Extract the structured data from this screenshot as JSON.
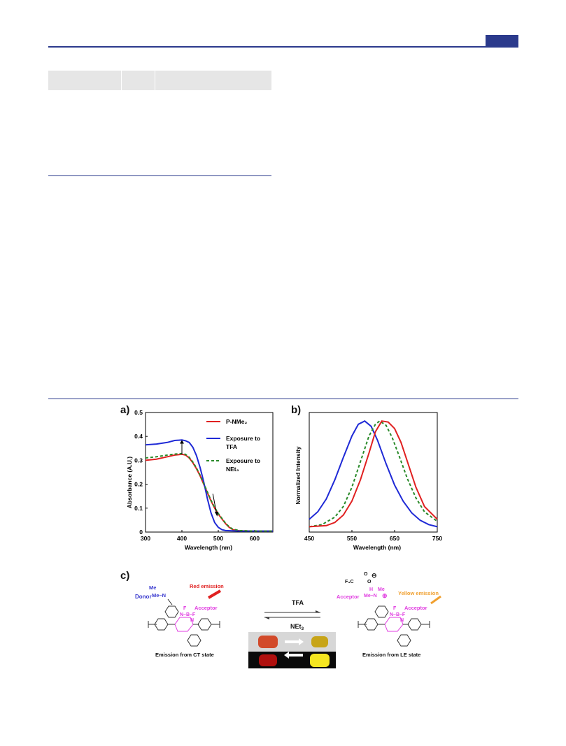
{
  "figure": {
    "panel_labels": {
      "a": "a)",
      "b": "b)",
      "c": "c)"
    }
  },
  "scheme": {
    "left": {
      "donor": "Donor",
      "me_top": "Me",
      "me_n": "Me–N",
      "red_emission": "Red emission",
      "acceptor": "Acceptor",
      "f": "F",
      "nbf": "N–B–F",
      "n": "N",
      "caption": "Emission from CT state"
    },
    "middle": {
      "forward": "TFA",
      "backward": "NEt",
      "backward_sub": "3"
    },
    "right": {
      "f3c": "F₃C",
      "o_top": "O",
      "o": "O",
      "minus": "⊖",
      "acceptor_left": "Acceptor",
      "me_n_h_me": "Me–N",
      "h": "H",
      "me": "Me",
      "plus": "⊕",
      "yellow_emission": "Yellow emission",
      "acceptor_right": "Acceptor",
      "f": "F",
      "nbf": "N–B–F",
      "n": "N",
      "caption": "Emission from LE state"
    },
    "colors": {
      "donor": "#3a3acf",
      "acceptor": "#e03ce0",
      "red": "#e02020",
      "yellow": "#f0a030"
    }
  },
  "chart_data": [
    {
      "type": "line",
      "panel": "a",
      "xlabel": "Wavelength (nm)",
      "ylabel": "Absorbance (A.U.)",
      "xlim": [
        300,
        650
      ],
      "ylim": [
        0,
        0.5
      ],
      "xticks": [
        "300",
        "400",
        "500",
        "600"
      ],
      "yticks": [
        "0",
        "0.1",
        "0.2",
        "0.3",
        "0.4",
        "0.5"
      ],
      "legend_position": "top-right",
      "series": [
        {
          "name": "P-NMe₂",
          "color": "#e02020",
          "dash": "solid",
          "x": [
            300,
            330,
            360,
            380,
            400,
            410,
            420,
            430,
            440,
            450,
            460,
            470,
            480,
            490,
            500,
            510,
            520,
            530,
            540,
            560,
            600,
            650
          ],
          "y": [
            0.3,
            0.305,
            0.315,
            0.322,
            0.325,
            0.322,
            0.31,
            0.29,
            0.265,
            0.235,
            0.2,
            0.165,
            0.13,
            0.1,
            0.075,
            0.055,
            0.035,
            0.02,
            0.01,
            0.005,
            0.004,
            0.004
          ]
        },
        {
          "name": "Exposure to TFA",
          "color": "#1f2ad6",
          "dash": "solid",
          "x": [
            300,
            330,
            360,
            380,
            400,
            410,
            420,
            430,
            440,
            450,
            460,
            470,
            480,
            490,
            500,
            510,
            520,
            540,
            560,
            600,
            650
          ],
          "y": [
            0.365,
            0.368,
            0.375,
            0.383,
            0.385,
            0.382,
            0.375,
            0.355,
            0.32,
            0.27,
            0.21,
            0.14,
            0.08,
            0.04,
            0.02,
            0.01,
            0.006,
            0.005,
            0.004,
            0.004,
            0.004
          ]
        },
        {
          "name": "Exposure to NEt₃",
          "color": "#2a8a2a",
          "dash": "dashed",
          "x": [
            300,
            330,
            360,
            380,
            400,
            410,
            420,
            430,
            440,
            450,
            460,
            470,
            480,
            490,
            500,
            510,
            520,
            530,
            540,
            560,
            600,
            650
          ],
          "y": [
            0.31,
            0.315,
            0.322,
            0.326,
            0.328,
            0.325,
            0.313,
            0.293,
            0.268,
            0.238,
            0.203,
            0.168,
            0.133,
            0.103,
            0.078,
            0.057,
            0.037,
            0.022,
            0.012,
            0.006,
            0.004,
            0.004
          ]
        }
      ]
    },
    {
      "type": "line",
      "panel": "b",
      "xlabel": "Wavelength (nm)",
      "ylabel": "Normalized Intensity",
      "xlim": [
        450,
        750
      ],
      "xticks": [
        "450",
        "550",
        "650",
        "750"
      ],
      "series": [
        {
          "color": "#1f2ad6",
          "dash": "solid",
          "x": [
            450,
            470,
            490,
            510,
            530,
            550,
            565,
            580,
            595,
            610,
            630,
            650,
            670,
            690,
            710,
            730,
            750
          ],
          "y": [
            0.08,
            0.15,
            0.27,
            0.45,
            0.66,
            0.86,
            0.97,
            1.0,
            0.95,
            0.82,
            0.6,
            0.4,
            0.25,
            0.14,
            0.07,
            0.03,
            0.01
          ]
        },
        {
          "color": "#2a8a2a",
          "dash": "dashed",
          "x": [
            450,
            480,
            510,
            530,
            550,
            570,
            590,
            605,
            615,
            630,
            645,
            660,
            680,
            700,
            720,
            750
          ],
          "y": [
            0.01,
            0.03,
            0.1,
            0.2,
            0.38,
            0.62,
            0.86,
            0.97,
            1.0,
            0.96,
            0.84,
            0.68,
            0.46,
            0.28,
            0.15,
            0.06
          ]
        },
        {
          "color": "#e02020",
          "dash": "solid",
          "x": [
            450,
            490,
            510,
            530,
            550,
            570,
            590,
            605,
            620,
            635,
            650,
            665,
            680,
            700,
            720,
            750
          ],
          "y": [
            0.01,
            0.02,
            0.05,
            0.12,
            0.25,
            0.45,
            0.7,
            0.9,
            1.0,
            0.99,
            0.93,
            0.8,
            0.62,
            0.38,
            0.2,
            0.08
          ]
        }
      ]
    }
  ]
}
